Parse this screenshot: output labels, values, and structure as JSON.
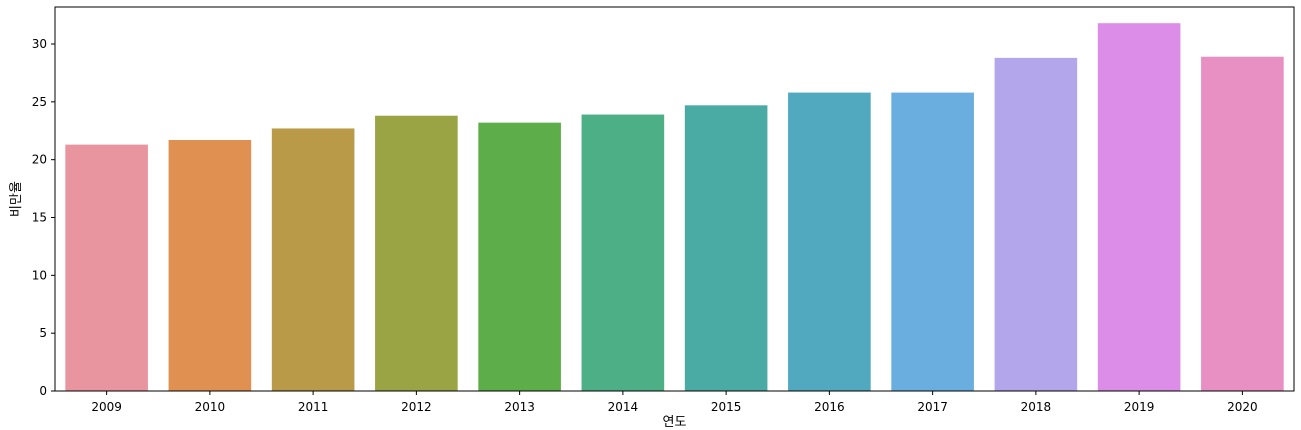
{
  "chart_data": {
    "type": "bar",
    "categories": [
      "2009",
      "2010",
      "2011",
      "2012",
      "2013",
      "2014",
      "2015",
      "2016",
      "2017",
      "2018",
      "2019",
      "2020"
    ],
    "values": [
      21.3,
      21.7,
      22.7,
      23.8,
      23.2,
      23.9,
      24.7,
      25.8,
      25.8,
      28.8,
      31.8,
      28.9
    ],
    "colors": [
      "#e8959f",
      "#e09050",
      "#b89a48",
      "#9aa445",
      "#5dad4a",
      "#4caf85",
      "#4aaba5",
      "#50a9bf",
      "#6aaee0",
      "#b3a6ea",
      "#dc8de8",
      "#e890c4"
    ],
    "title": "",
    "xlabel": "연도",
    "ylabel": "비만율",
    "ylim": [
      0,
      33.2
    ],
    "yticks": [
      0,
      5,
      10,
      15,
      20,
      25,
      30
    ],
    "grid": false,
    "legend": "none"
  }
}
